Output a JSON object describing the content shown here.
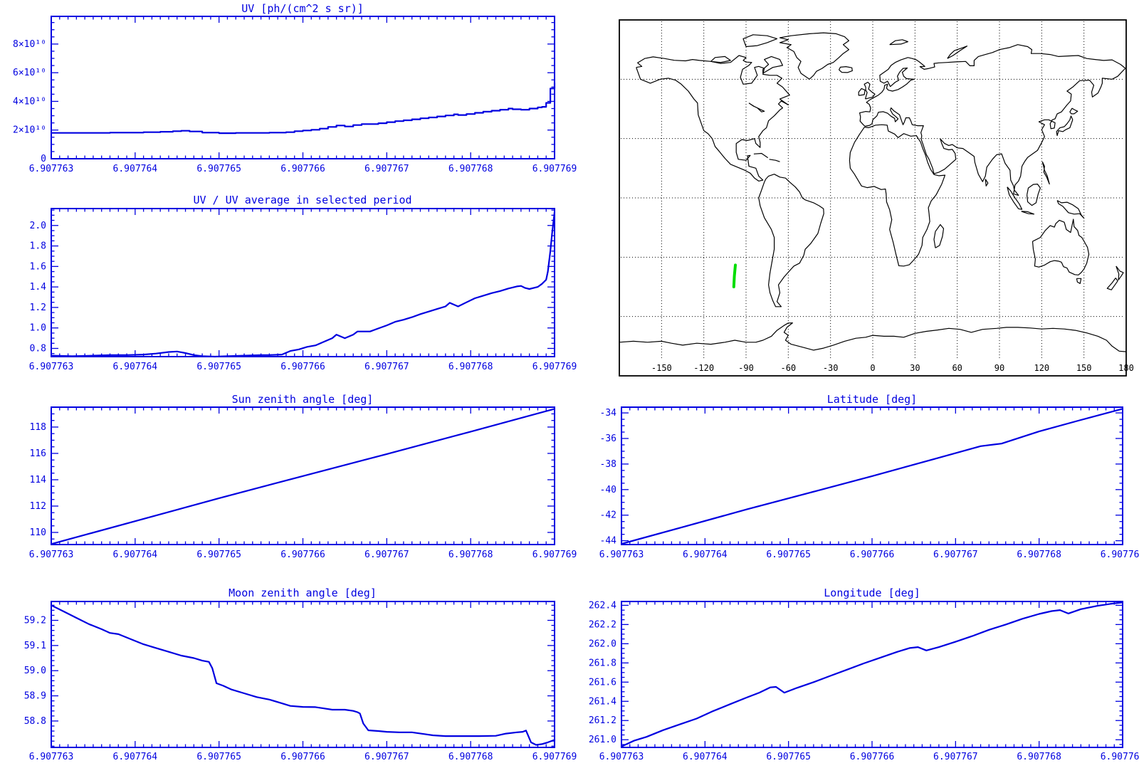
{
  "app": {
    "description": "Instrument time-series diagnostic plots with satellite ground-track world map"
  },
  "palette": {
    "plot_blue": "#0000e0",
    "map_line": "#000000",
    "track_green": "#00dd00",
    "background": "#ffffff"
  },
  "x_axis": {
    "tick_labels": [
      "6.907763",
      "6.907764",
      "6.907765",
      "6.907766",
      "6.907767",
      "6.907768",
      "6.907769"
    ],
    "minor_per_major": 10
  },
  "chart_data": [
    {
      "id": "uv",
      "type": "steps",
      "title": "UV [ph/(cm^2 s sr)]",
      "xlabel_ticks": [
        "6.907763",
        "6.907764",
        "6.907765",
        "6.907766",
        "6.907767",
        "6.907768",
        "6.907769"
      ],
      "y_unit": "1e10 ph/(cm^2 s sr)",
      "ylim": [
        0,
        9.93
      ],
      "ytick_vals": [
        0,
        2,
        4,
        6,
        8
      ],
      "ytick_labels": [
        "0",
        "2×10¹⁰",
        "4×10¹⁰",
        "6×10¹⁰",
        "8×10¹⁰"
      ],
      "y_minor_step": 0.5,
      "points": [
        [
          0,
          1.8
        ],
        [
          0.5,
          1.8
        ],
        [
          0.7,
          1.82
        ],
        [
          0.9,
          1.82
        ],
        [
          1.1,
          1.85
        ],
        [
          1.3,
          1.88
        ],
        [
          1.45,
          1.92
        ],
        [
          1.55,
          1.95
        ],
        [
          1.65,
          1.9
        ],
        [
          1.8,
          1.82
        ],
        [
          2.0,
          1.78
        ],
        [
          2.2,
          1.8
        ],
        [
          2.4,
          1.8
        ],
        [
          2.6,
          1.82
        ],
        [
          2.8,
          1.85
        ],
        [
          2.9,
          1.92
        ],
        [
          3.0,
          1.97
        ],
        [
          3.1,
          2.02
        ],
        [
          3.2,
          2.1
        ],
        [
          3.3,
          2.22
        ],
        [
          3.4,
          2.32
        ],
        [
          3.5,
          2.25
        ],
        [
          3.6,
          2.35
        ],
        [
          3.7,
          2.42
        ],
        [
          3.8,
          2.42
        ],
        [
          3.9,
          2.48
        ],
        [
          4.0,
          2.55
        ],
        [
          4.1,
          2.62
        ],
        [
          4.2,
          2.68
        ],
        [
          4.3,
          2.75
        ],
        [
          4.4,
          2.82
        ],
        [
          4.5,
          2.88
        ],
        [
          4.6,
          2.95
        ],
        [
          4.7,
          3.02
        ],
        [
          4.8,
          3.1
        ],
        [
          4.85,
          3.05
        ],
        [
          4.95,
          3.12
        ],
        [
          5.05,
          3.2
        ],
        [
          5.15,
          3.28
        ],
        [
          5.25,
          3.35
        ],
        [
          5.35,
          3.42
        ],
        [
          5.45,
          3.5
        ],
        [
          5.5,
          3.45
        ],
        [
          5.6,
          3.42
        ],
        [
          5.7,
          3.5
        ],
        [
          5.8,
          3.58
        ],
        [
          5.85,
          3.62
        ],
        [
          5.9,
          3.9
        ],
        [
          5.95,
          4.9
        ],
        [
          6.0,
          5.3
        ]
      ]
    },
    {
      "id": "ratio",
      "type": "line",
      "title": "UV / UV average in selected period",
      "ylim": [
        0.72,
        2.165
      ],
      "ytick_vals": [
        0.8,
        1.0,
        1.2,
        1.4,
        1.6,
        1.8,
        2.0
      ],
      "ytick_labels": [
        "0.8",
        "1.0",
        "1.2",
        "1.4",
        "1.6",
        "1.8",
        "2.0"
      ],
      "y_minor_step": 0.05,
      "points": [
        [
          0,
          0.73
        ],
        [
          0.25,
          0.725
        ],
        [
          0.5,
          0.73
        ],
        [
          0.7,
          0.735
        ],
        [
          0.9,
          0.735
        ],
        [
          1.1,
          0.74
        ],
        [
          1.25,
          0.75
        ],
        [
          1.4,
          0.765
        ],
        [
          1.5,
          0.77
        ],
        [
          1.6,
          0.755
        ],
        [
          1.7,
          0.735
        ],
        [
          1.8,
          0.725
        ],
        [
          1.95,
          0.72
        ],
        [
          2.1,
          0.725
        ],
        [
          2.3,
          0.73
        ],
        [
          2.5,
          0.735
        ],
        [
          2.6,
          0.735
        ],
        [
          2.75,
          0.74
        ],
        [
          2.85,
          0.775
        ],
        [
          2.95,
          0.79
        ],
        [
          3.05,
          0.815
        ],
        [
          3.15,
          0.83
        ],
        [
          3.25,
          0.865
        ],
        [
          3.35,
          0.9
        ],
        [
          3.4,
          0.935
        ],
        [
          3.5,
          0.9
        ],
        [
          3.6,
          0.935
        ],
        [
          3.65,
          0.965
        ],
        [
          3.8,
          0.965
        ],
        [
          3.9,
          0.995
        ],
        [
          4.0,
          1.025
        ],
        [
          4.1,
          1.06
        ],
        [
          4.2,
          1.08
        ],
        [
          4.3,
          1.105
        ],
        [
          4.4,
          1.135
        ],
        [
          4.5,
          1.16
        ],
        [
          4.6,
          1.185
        ],
        [
          4.7,
          1.21
        ],
        [
          4.75,
          1.245
        ],
        [
          4.85,
          1.21
        ],
        [
          4.95,
          1.25
        ],
        [
          5.05,
          1.29
        ],
        [
          5.15,
          1.315
        ],
        [
          5.25,
          1.34
        ],
        [
          5.35,
          1.36
        ],
        [
          5.45,
          1.385
        ],
        [
          5.55,
          1.405
        ],
        [
          5.6,
          1.41
        ],
        [
          5.65,
          1.39
        ],
        [
          5.7,
          1.38
        ],
        [
          5.8,
          1.4
        ],
        [
          5.85,
          1.43
        ],
        [
          5.9,
          1.47
        ],
        [
          5.92,
          1.55
        ],
        [
          5.95,
          1.75
        ],
        [
          5.97,
          1.92
        ],
        [
          6.0,
          2.13
        ]
      ]
    },
    {
      "id": "sun",
      "type": "line",
      "title": "Sun zenith angle [deg]",
      "ylim": [
        109.08,
        119.51
      ],
      "ytick_vals": [
        110,
        112,
        114,
        116,
        118
      ],
      "ytick_labels": [
        "110",
        "112",
        "114",
        "116",
        "118"
      ],
      "y_minor_step": 0.5,
      "points": [
        [
          0,
          109.12
        ],
        [
          1,
          110.85
        ],
        [
          2,
          112.6
        ],
        [
          3,
          114.28
        ],
        [
          4,
          115.95
        ],
        [
          5,
          117.65
        ],
        [
          6,
          119.38
        ]
      ]
    },
    {
      "id": "moon",
      "type": "line",
      "title": "Moon zenith angle [deg]",
      "ylim": [
        58.695,
        59.275
      ],
      "ytick_vals": [
        58.8,
        58.9,
        59.0,
        59.1,
        59.2
      ],
      "ytick_labels": [
        "58.8",
        "58.9",
        "59.0",
        "59.1",
        "59.2"
      ],
      "y_minor_step": 0.02,
      "points": [
        [
          0,
          59.26
        ],
        [
          0.15,
          59.235
        ],
        [
          0.3,
          59.21
        ],
        [
          0.45,
          59.185
        ],
        [
          0.6,
          59.165
        ],
        [
          0.7,
          59.15
        ],
        [
          0.8,
          59.145
        ],
        [
          0.95,
          59.125
        ],
        [
          1.1,
          59.105
        ],
        [
          1.25,
          59.09
        ],
        [
          1.4,
          59.075
        ],
        [
          1.55,
          59.06
        ],
        [
          1.7,
          59.05
        ],
        [
          1.8,
          59.04
        ],
        [
          1.88,
          59.035
        ],
        [
          1.92,
          59.01
        ],
        [
          1.97,
          58.95
        ],
        [
          2.05,
          58.94
        ],
        [
          2.15,
          58.925
        ],
        [
          2.3,
          58.91
        ],
        [
          2.45,
          58.895
        ],
        [
          2.6,
          58.885
        ],
        [
          2.75,
          58.87
        ],
        [
          2.85,
          58.86
        ],
        [
          3.0,
          58.856
        ],
        [
          3.15,
          58.855
        ],
        [
          3.25,
          58.85
        ],
        [
          3.35,
          58.845
        ],
        [
          3.5,
          58.845
        ],
        [
          3.6,
          58.84
        ],
        [
          3.65,
          58.835
        ],
        [
          3.68,
          58.83
        ],
        [
          3.72,
          58.79
        ],
        [
          3.78,
          58.763
        ],
        [
          3.9,
          58.76
        ],
        [
          4.0,
          58.757
        ],
        [
          4.15,
          58.755
        ],
        [
          4.3,
          58.755
        ],
        [
          4.45,
          58.748
        ],
        [
          4.55,
          58.743
        ],
        [
          4.7,
          58.74
        ],
        [
          4.9,
          58.74
        ],
        [
          5.1,
          58.74
        ],
        [
          5.3,
          58.741
        ],
        [
          5.42,
          58.75
        ],
        [
          5.55,
          58.755
        ],
        [
          5.62,
          58.757
        ],
        [
          5.66,
          58.762
        ],
        [
          5.72,
          58.715
        ],
        [
          5.78,
          58.705
        ],
        [
          5.85,
          58.708
        ],
        [
          5.92,
          58.715
        ],
        [
          6.0,
          58.725
        ]
      ]
    },
    {
      "id": "lat",
      "type": "line",
      "title": "Latitude [deg]",
      "ylim": [
        -44.3,
        -33.55
      ],
      "ytick_vals": [
        -44,
        -42,
        -40,
        -38,
        -36,
        -34
      ],
      "ytick_labels": [
        "-44",
        "-42",
        "-40",
        "-38",
        "-36",
        "-34"
      ],
      "y_minor_step": 0.5,
      "points": [
        [
          0,
          -44.25
        ],
        [
          0.75,
          -42.9
        ],
        [
          1.5,
          -41.55
        ],
        [
          2.25,
          -40.25
        ],
        [
          3,
          -38.95
        ],
        [
          3.75,
          -37.6
        ],
        [
          4.3,
          -36.6
        ],
        [
          4.55,
          -36.4
        ],
        [
          5,
          -35.45
        ],
        [
          5.5,
          -34.55
        ],
        [
          6,
          -33.68
        ]
      ]
    },
    {
      "id": "lon",
      "type": "line",
      "title": "Longitude [deg]",
      "ylim": [
        260.92,
        262.44
      ],
      "ytick_vals": [
        261.0,
        261.2,
        261.4,
        261.6,
        261.8,
        262.0,
        262.2,
        262.4
      ],
      "ytick_labels": [
        "261.0",
        "261.2",
        "261.4",
        "261.6",
        "261.8",
        "262.0",
        "262.2",
        "262.4"
      ],
      "y_minor_step": 0.05,
      "points": [
        [
          0,
          260.93
        ],
        [
          0.15,
          260.99
        ],
        [
          0.3,
          261.03
        ],
        [
          0.5,
          261.1
        ],
        [
          0.7,
          261.16
        ],
        [
          0.9,
          261.22
        ],
        [
          1.1,
          261.3
        ],
        [
          1.3,
          261.37
        ],
        [
          1.5,
          261.44
        ],
        [
          1.65,
          261.49
        ],
        [
          1.78,
          261.545
        ],
        [
          1.85,
          261.55
        ],
        [
          1.95,
          261.49
        ],
        [
          2.1,
          261.54
        ],
        [
          2.3,
          261.6
        ],
        [
          2.5,
          261.665
        ],
        [
          2.7,
          261.73
        ],
        [
          2.9,
          261.795
        ],
        [
          3.1,
          261.855
        ],
        [
          3.3,
          261.915
        ],
        [
          3.45,
          261.955
        ],
        [
          3.55,
          261.965
        ],
        [
          3.65,
          261.93
        ],
        [
          3.8,
          261.965
        ],
        [
          4.0,
          262.02
        ],
        [
          4.2,
          262.08
        ],
        [
          4.4,
          262.145
        ],
        [
          4.6,
          262.2
        ],
        [
          4.8,
          262.26
        ],
        [
          5.0,
          262.31
        ],
        [
          5.15,
          262.34
        ],
        [
          5.25,
          262.35
        ],
        [
          5.35,
          262.315
        ],
        [
          5.5,
          262.36
        ],
        [
          5.7,
          262.395
        ],
        [
          5.85,
          262.415
        ],
        [
          6.0,
          262.43
        ]
      ]
    },
    {
      "id": "map",
      "type": "map",
      "title": "",
      "projection": "equirectangular",
      "lon_range": [
        -180,
        180
      ],
      "lat_range": [
        -90,
        90
      ],
      "grid_step_deg": 30,
      "xtick_vals": [
        -150,
        -120,
        -90,
        -60,
        -30,
        0,
        30,
        60,
        90,
        120,
        150,
        180
      ],
      "xtick_labels": [
        "-150",
        "-120",
        "-90",
        "-60",
        "-30",
        "0",
        "30",
        "60",
        "90",
        "120",
        "150",
        "180"
      ],
      "track_points": [
        [
          -98.7,
          -45
        ],
        [
          -98.3,
          -39.5
        ],
        [
          -97.6,
          -34
        ]
      ],
      "track_color": "#00dd00"
    }
  ]
}
